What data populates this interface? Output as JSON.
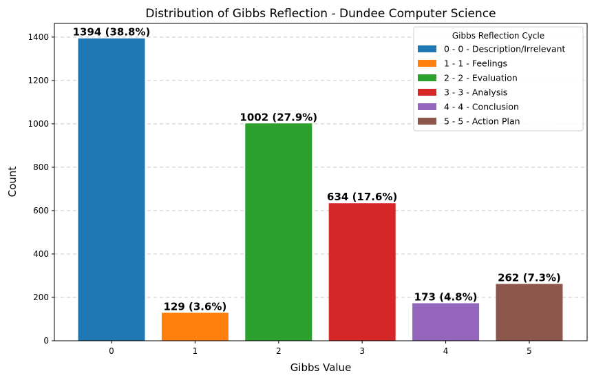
{
  "chart_data": {
    "type": "bar",
    "title": "Distribution of Gibbs Reflection - Dundee Computer Science",
    "xlabel": "Gibbs Value",
    "ylabel": "Count",
    "categories": [
      "0",
      "1",
      "2",
      "3",
      "4",
      "5"
    ],
    "values": [
      1394,
      129,
      1002,
      634,
      173,
      262
    ],
    "data_labels": [
      "1394 (38.8%)",
      "129 (3.6%)",
      "1002 (27.9%)",
      "634 (17.6%)",
      "173 (4.8%)",
      "262 (7.3%)"
    ],
    "colors": [
      "#1f77b4",
      "#ff7f0e",
      "#2ca02c",
      "#d62728",
      "#9467bd",
      "#8c564b"
    ],
    "ylim": [
      0,
      1463
    ],
    "yticks": [
      0,
      200,
      400,
      600,
      800,
      1000,
      1200,
      1400
    ],
    "ytick_labels": [
      "0",
      "200",
      "400",
      "600",
      "800",
      "1000",
      "1200",
      "1400"
    ],
    "grid": "y-dashed",
    "legend": {
      "title": "Gibbs Reflection Cycle",
      "placement": "top-right",
      "entries": [
        "0 - 0 - Description/Irrelevant",
        "1 - 1 - Feelings",
        "2 - 2 - Evaluation",
        "3 - 3 - Analysis",
        "4 - 4 - Conclusion",
        "5 - 5 - Action Plan"
      ]
    }
  }
}
